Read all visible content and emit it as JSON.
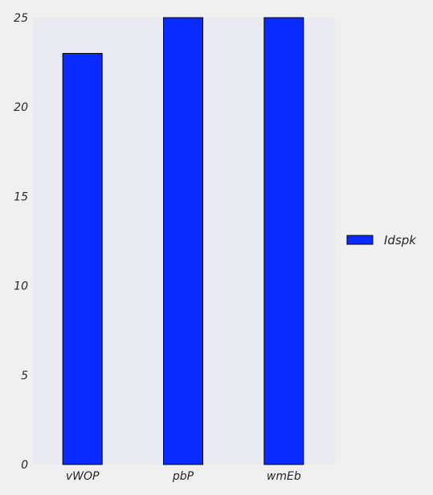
{
  "chart_data": {
    "type": "bar",
    "categories": [
      "vWOP",
      "pbP",
      "wmEb"
    ],
    "series": [
      {
        "name": "Idspk",
        "values": [
          23,
          25,
          25
        ]
      }
    ],
    "ylim": [
      0,
      25
    ],
    "yticks": [
      0,
      5,
      10,
      15,
      20,
      25
    ],
    "grid": false,
    "legend": "right",
    "colors": {
      "bar": "#0a2bff",
      "bar_edge": "#000000",
      "plot_background": "#eaeaf2",
      "figure_background": "#f0f0f0"
    }
  }
}
